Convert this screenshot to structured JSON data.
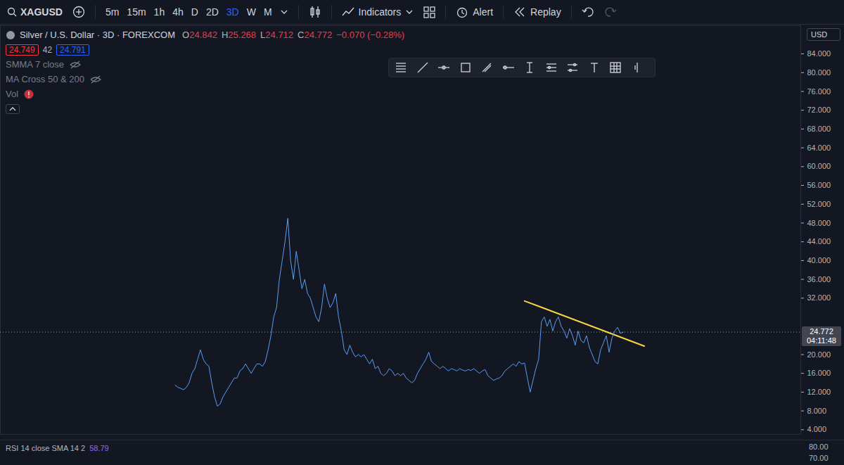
{
  "header": {
    "symbol": "XAGUSD",
    "timeframes": [
      "5m",
      "15m",
      "1h",
      "4h",
      "D",
      "2D",
      "3D",
      "W",
      "M"
    ],
    "active_timeframe": "3D",
    "buttons": [
      "Indicators",
      "Alert",
      "Replay"
    ],
    "currency": "USD"
  },
  "legend": {
    "title": "Silver / U.S. Dollar · 3D · FOREXCOM",
    "ohlc": [
      {
        "label": "O",
        "value": "24.842"
      },
      {
        "label": "H",
        "value": "25.268"
      },
      {
        "label": "L",
        "value": "24.712"
      },
      {
        "label": "C",
        "value": "24.772"
      }
    ],
    "change": "−0.070 (−0.28%)",
    "bid": "24.749",
    "spread": "42",
    "ask": "24.791",
    "indicators": [
      "SMMA 7 close",
      "MA Cross 50 & 200",
      "Vol"
    ]
  },
  "chart_data": {
    "type": "line",
    "x": [
      0,
      1,
      2,
      3,
      4,
      5,
      6,
      7,
      8,
      9,
      10,
      11,
      12,
      13,
      14,
      15,
      16,
      17,
      18,
      19,
      20,
      21,
      22,
      23,
      24,
      25,
      26,
      27,
      28,
      29,
      30,
      31,
      32,
      33,
      34,
      35,
      36,
      37,
      38,
      39,
      40,
      41,
      42,
      43,
      44,
      45,
      46,
      47,
      48,
      49,
      50,
      51,
      52,
      53,
      54,
      55,
      56,
      57,
      58,
      59,
      60,
      61,
      62,
      63,
      64,
      65,
      66,
      67,
      68,
      69,
      70,
      71,
      72,
      73,
      74,
      75,
      76,
      77,
      78,
      79,
      80,
      81,
      82,
      83,
      84,
      85,
      86,
      87,
      88,
      89,
      90,
      91,
      92,
      93,
      94,
      95,
      96,
      97,
      98,
      99,
      100,
      101,
      102,
      103,
      104,
      105,
      106,
      107,
      108,
      109,
      110,
      111,
      112,
      113,
      114,
      115,
      116,
      117,
      118,
      119,
      120,
      121,
      122,
      123,
      124,
      125,
      126,
      127,
      128,
      129,
      130,
      131,
      132,
      133,
      134,
      135,
      136,
      137,
      138,
      139,
      140,
      141,
      142,
      143,
      144,
      145,
      146,
      147,
      148,
      149,
      150,
      151,
      152,
      153,
      154,
      155,
      156,
      157,
      158,
      159
    ],
    "values": [
      13.5,
      13,
      12.8,
      12.5,
      13,
      14,
      16,
      17,
      19,
      21,
      19,
      18,
      17.5,
      14,
      11,
      9,
      9.5,
      11,
      12,
      13,
      14,
      15,
      15,
      16.5,
      17,
      18,
      17,
      16,
      17,
      18,
      18,
      17.5,
      18.5,
      21,
      24,
      28,
      30,
      36,
      40,
      44,
      49,
      40,
      36,
      42,
      38,
      34,
      36,
      33,
      32,
      30,
      28,
      27,
      30,
      35,
      32,
      30,
      31,
      33,
      28,
      25,
      21,
      20,
      22,
      20.5,
      19.5,
      20,
      19.5,
      20,
      19,
      18,
      19,
      17,
      17.5,
      16,
      15.5,
      16,
      17,
      16.5,
      15.5,
      16,
      15.5,
      16,
      15,
      14.5,
      14,
      14.5,
      16,
      17,
      18,
      19,
      20.5,
      18.5,
      18,
      17.5,
      17,
      17.5,
      17,
      16.5,
      17,
      16.8,
      16.5,
      17,
      16.7,
      16.5,
      16.8,
      16.6,
      17,
      16.5,
      16,
      16.5,
      16.8,
      15.5,
      15,
      14.5,
      14.8,
      15,
      15.5,
      16.5,
      17,
      17.5,
      18,
      17.5,
      18.5,
      18,
      18.2,
      15,
      12,
      14.5,
      17,
      19,
      27,
      28,
      26,
      27.5,
      25,
      27,
      28,
      26,
      25,
      23.5,
      25.5,
      24,
      22,
      25,
      23,
      22.5,
      24,
      21.5,
      20,
      18.5,
      18,
      21,
      22.5,
      24,
      20.5,
      23.5,
      25,
      25.8,
      24.5,
      24.772
    ],
    "color": "#5d9cf0",
    "xlim": [
      -62,
      222
    ],
    "ylim": [
      3,
      90
    ],
    "yticks": [
      {
        "value": 4,
        "label": "4.000"
      },
      {
        "value": 8,
        "label": "8.000"
      },
      {
        "value": 12,
        "label": "12.000"
      },
      {
        "value": 16,
        "label": "16.000"
      },
      {
        "value": 20,
        "label": "20.000"
      },
      {
        "value": 32,
        "label": "32.000"
      },
      {
        "value": 36,
        "label": "36.000"
      },
      {
        "value": 40,
        "label": "40.000"
      },
      {
        "value": 44,
        "label": "44.000"
      },
      {
        "value": 48,
        "label": "48.000"
      },
      {
        "value": 52,
        "label": "52.000"
      },
      {
        "value": 56,
        "label": "56.000"
      },
      {
        "value": 60,
        "label": "60.000"
      },
      {
        "value": 64,
        "label": "64.000"
      },
      {
        "value": 68,
        "label": "68.000"
      },
      {
        "value": 72,
        "label": "72.000"
      },
      {
        "value": 76,
        "label": "76.000"
      },
      {
        "value": 80,
        "label": "80.000"
      },
      {
        "value": 84,
        "label": "84.000"
      }
    ],
    "tick_labels": "y",
    "grid": false,
    "annotations": [
      {
        "type": "price_line",
        "value": 24.772,
        "label": "24.772",
        "timer": "04:11:48"
      },
      {
        "type": "trendline",
        "x": [
          124,
          166.5
        ],
        "y": [
          31.4,
          21.8
        ],
        "color": "#f5d742"
      }
    ]
  },
  "rsi": {
    "title": "RSI 14 close SMA 14 2",
    "value": "58.79",
    "labels": [
      "80.00",
      "70.00"
    ]
  }
}
